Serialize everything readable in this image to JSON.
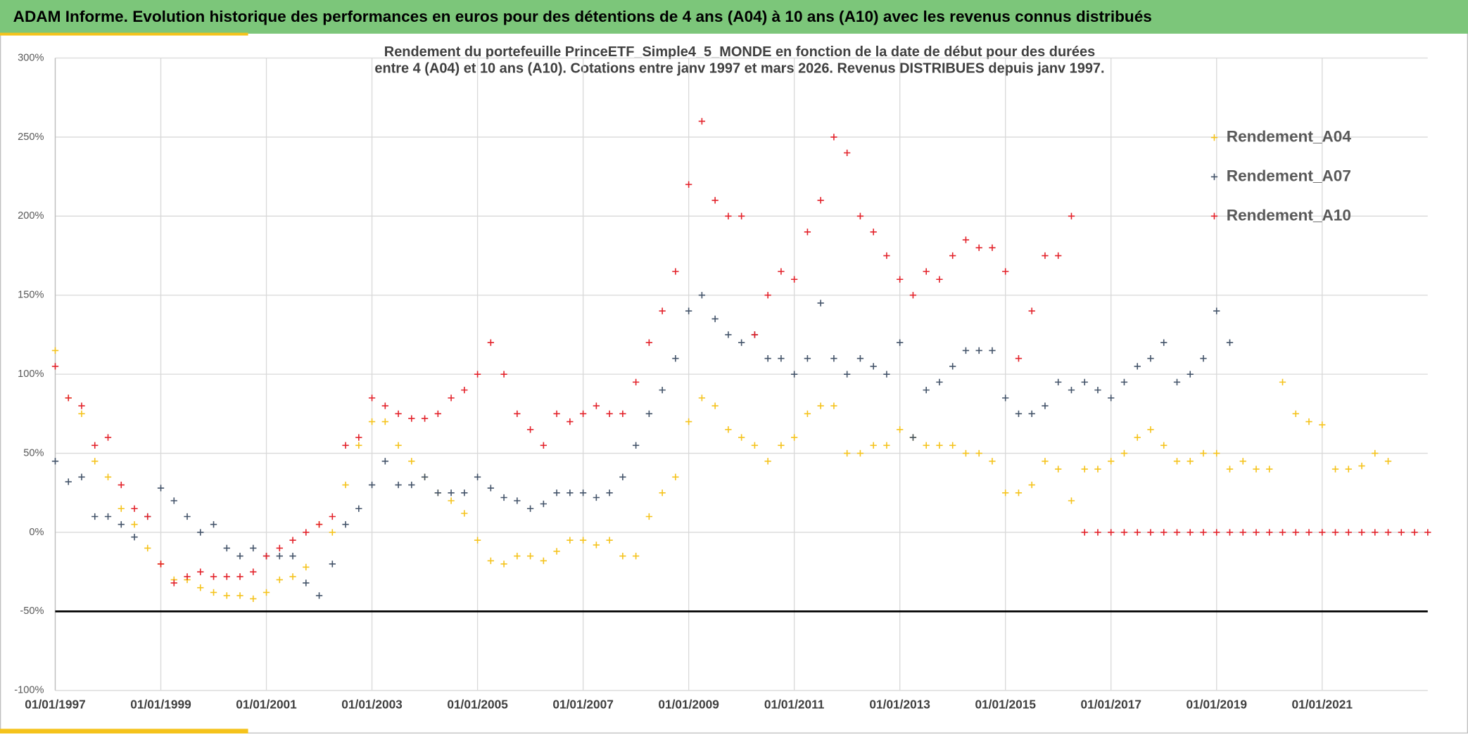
{
  "banner": "ADAM Informe. Evolution historique des performances en euros pour des détentions de 4 ans (A04) à 10 ans (A10) avec les revenus connus distribués",
  "chart_data": {
    "type": "scatter",
    "title": [
      "Rendement du portefeuille PrinceETF_Simple4_5_MONDE en fonction de la date de début pour des durées",
      "entre 4 (A04) et 10 ans (A10). Cotations entre janv 1997 et mars 2026. Revenus DISTRIBUES depuis janv 1997."
    ],
    "x": [
      "01/01/1997",
      "01/04/1997",
      "01/07/1997",
      "01/10/1997",
      "01/01/1998",
      "01/04/1998",
      "01/07/1998",
      "01/10/1998",
      "01/01/1999",
      "01/04/1999",
      "01/07/1999",
      "01/10/1999",
      "01/01/2000",
      "01/04/2000",
      "01/07/2000",
      "01/10/2000",
      "01/01/2001",
      "01/04/2001",
      "01/07/2001",
      "01/10/2001",
      "01/01/2002",
      "01/04/2002",
      "01/07/2002",
      "01/10/2002",
      "01/01/2003",
      "01/04/2003",
      "01/07/2003",
      "01/10/2003",
      "01/01/2004",
      "01/04/2004",
      "01/07/2004",
      "01/10/2004",
      "01/01/2005",
      "01/04/2005",
      "01/07/2005",
      "01/10/2005",
      "01/01/2006",
      "01/04/2006",
      "01/07/2006",
      "01/10/2006",
      "01/01/2007",
      "01/04/2007",
      "01/07/2007",
      "01/10/2007",
      "01/01/2008",
      "01/04/2008",
      "01/07/2008",
      "01/10/2008",
      "01/01/2009",
      "01/04/2009",
      "01/07/2009",
      "01/10/2009",
      "01/01/2010",
      "01/04/2010",
      "01/07/2010",
      "01/10/2010",
      "01/01/2011",
      "01/04/2011",
      "01/07/2011",
      "01/10/2011",
      "01/01/2012",
      "01/04/2012",
      "01/07/2012",
      "01/10/2012",
      "01/01/2013",
      "01/04/2013",
      "01/07/2013",
      "01/10/2013",
      "01/01/2014",
      "01/04/2014",
      "01/07/2014",
      "01/10/2014",
      "01/01/2015",
      "01/04/2015",
      "01/07/2015",
      "01/10/2015",
      "01/01/2016",
      "01/04/2016",
      "01/07/2016",
      "01/10/2016",
      "01/01/2017",
      "01/04/2017",
      "01/07/2017",
      "01/10/2017",
      "01/01/2018",
      "01/04/2018",
      "01/07/2018",
      "01/10/2018",
      "01/01/2019",
      "01/04/2019",
      "01/07/2019",
      "01/10/2019",
      "01/01/2020",
      "01/04/2020",
      "01/07/2020",
      "01/10/2020",
      "01/01/2021",
      "01/04/2021",
      "01/07/2021",
      "01/10/2021",
      "01/01/2022",
      "01/04/2022",
      "01/07/2022",
      "01/10/2022",
      "01/01/2023"
    ],
    "series": [
      {
        "name": "Rendement_A04",
        "color": "#f5c31c",
        "values": [
          115,
          85,
          75,
          45,
          35,
          15,
          5,
          -10,
          -20,
          -30,
          -30,
          -35,
          -38,
          -40,
          -40,
          -42,
          -38,
          -30,
          -28,
          -22,
          5,
          0,
          30,
          55,
          70,
          70,
          55,
          45,
          35,
          25,
          20,
          12,
          -5,
          -18,
          -20,
          -15,
          -15,
          -18,
          -12,
          -5,
          -5,
          -8,
          -5,
          -15,
          -15,
          10,
          25,
          35,
          70,
          85,
          80,
          65,
          60,
          55,
          45,
          55,
          60,
          75,
          80,
          80,
          50,
          50,
          55,
          55,
          65,
          60,
          55,
          55,
          55,
          50,
          50,
          45,
          25,
          25,
          30,
          45,
          40,
          20,
          40,
          40,
          45,
          50,
          60,
          65,
          55,
          45,
          45,
          50,
          50,
          40,
          45,
          40,
          40,
          95,
          75,
          70,
          68,
          40,
          40,
          42,
          50,
          45,
          null,
          null,
          null
        ]
      },
      {
        "name": "Rendement_A07",
        "color": "#44546a",
        "values": [
          45,
          32,
          35,
          10,
          10,
          5,
          -3,
          10,
          28,
          20,
          10,
          0,
          5,
          -10,
          -15,
          -10,
          -15,
          -15,
          -15,
          -32,
          -40,
          -20,
          5,
          15,
          30,
          45,
          30,
          30,
          35,
          25,
          25,
          25,
          35,
          28,
          22,
          20,
          15,
          18,
          25,
          25,
          25,
          22,
          25,
          35,
          55,
          75,
          90,
          110,
          140,
          150,
          135,
          125,
          120,
          125,
          110,
          110,
          100,
          110,
          145,
          110,
          100,
          110,
          105,
          100,
          120,
          60,
          90,
          95,
          105,
          115,
          115,
          115,
          85,
          75,
          75,
          80,
          95,
          90,
          95,
          90,
          85,
          95,
          105,
          110,
          120,
          95,
          100,
          110,
          140,
          120,
          null,
          null,
          null,
          null,
          null,
          null,
          null,
          null,
          null,
          null,
          null,
          null,
          null,
          null,
          null
        ]
      },
      {
        "name": "Rendement_A10",
        "color": "#e3232b",
        "values": [
          105,
          85,
          80,
          55,
          60,
          30,
          15,
          10,
          -20,
          -32,
          -28,
          -25,
          -28,
          -28,
          -28,
          -25,
          -15,
          -10,
          -5,
          0,
          5,
          10,
          55,
          60,
          85,
          80,
          75,
          72,
          72,
          75,
          85,
          90,
          100,
          120,
          100,
          75,
          65,
          55,
          75,
          70,
          75,
          80,
          75,
          75,
          95,
          120,
          140,
          165,
          220,
          260,
          210,
          200,
          200,
          125,
          150,
          165,
          160,
          190,
          210,
          250,
          240,
          200,
          190,
          175,
          160,
          150,
          165,
          160,
          175,
          185,
          180,
          180,
          165,
          110,
          140,
          175,
          175,
          200,
          0,
          0,
          0,
          0,
          0,
          0,
          0,
          0,
          0,
          0,
          0,
          0,
          0,
          0,
          0,
          0,
          0,
          0,
          0,
          0,
          0,
          0,
          0,
          0,
          0,
          0,
          0
        ]
      }
    ],
    "xlim": [
      "01/01/1997",
      "01/01/2023"
    ],
    "xticks": [
      "01/01/1997",
      "01/01/1999",
      "01/01/2001",
      "01/01/2003",
      "01/01/2005",
      "01/01/2007",
      "01/01/2009",
      "01/01/2011",
      "01/01/2013",
      "01/01/2015",
      "01/01/2017",
      "01/01/2019",
      "01/01/2021"
    ],
    "ylim": [
      -100,
      300
    ],
    "yticks": [
      {
        "value": -100,
        "label": "-100%"
      },
      {
        "value": -50,
        "label": "-50%"
      },
      {
        "value": 0,
        "label": "0%"
      },
      {
        "value": 50,
        "label": "50%"
      },
      {
        "value": 100,
        "label": "100%"
      },
      {
        "value": 150,
        "label": "150%"
      },
      {
        "value": 200,
        "label": "200%"
      },
      {
        "value": 250,
        "label": "250%"
      },
      {
        "value": 300,
        "label": "300%"
      }
    ],
    "reference_line": {
      "value": -50,
      "color": "#000000"
    },
    "grid": true,
    "legend": "right"
  }
}
